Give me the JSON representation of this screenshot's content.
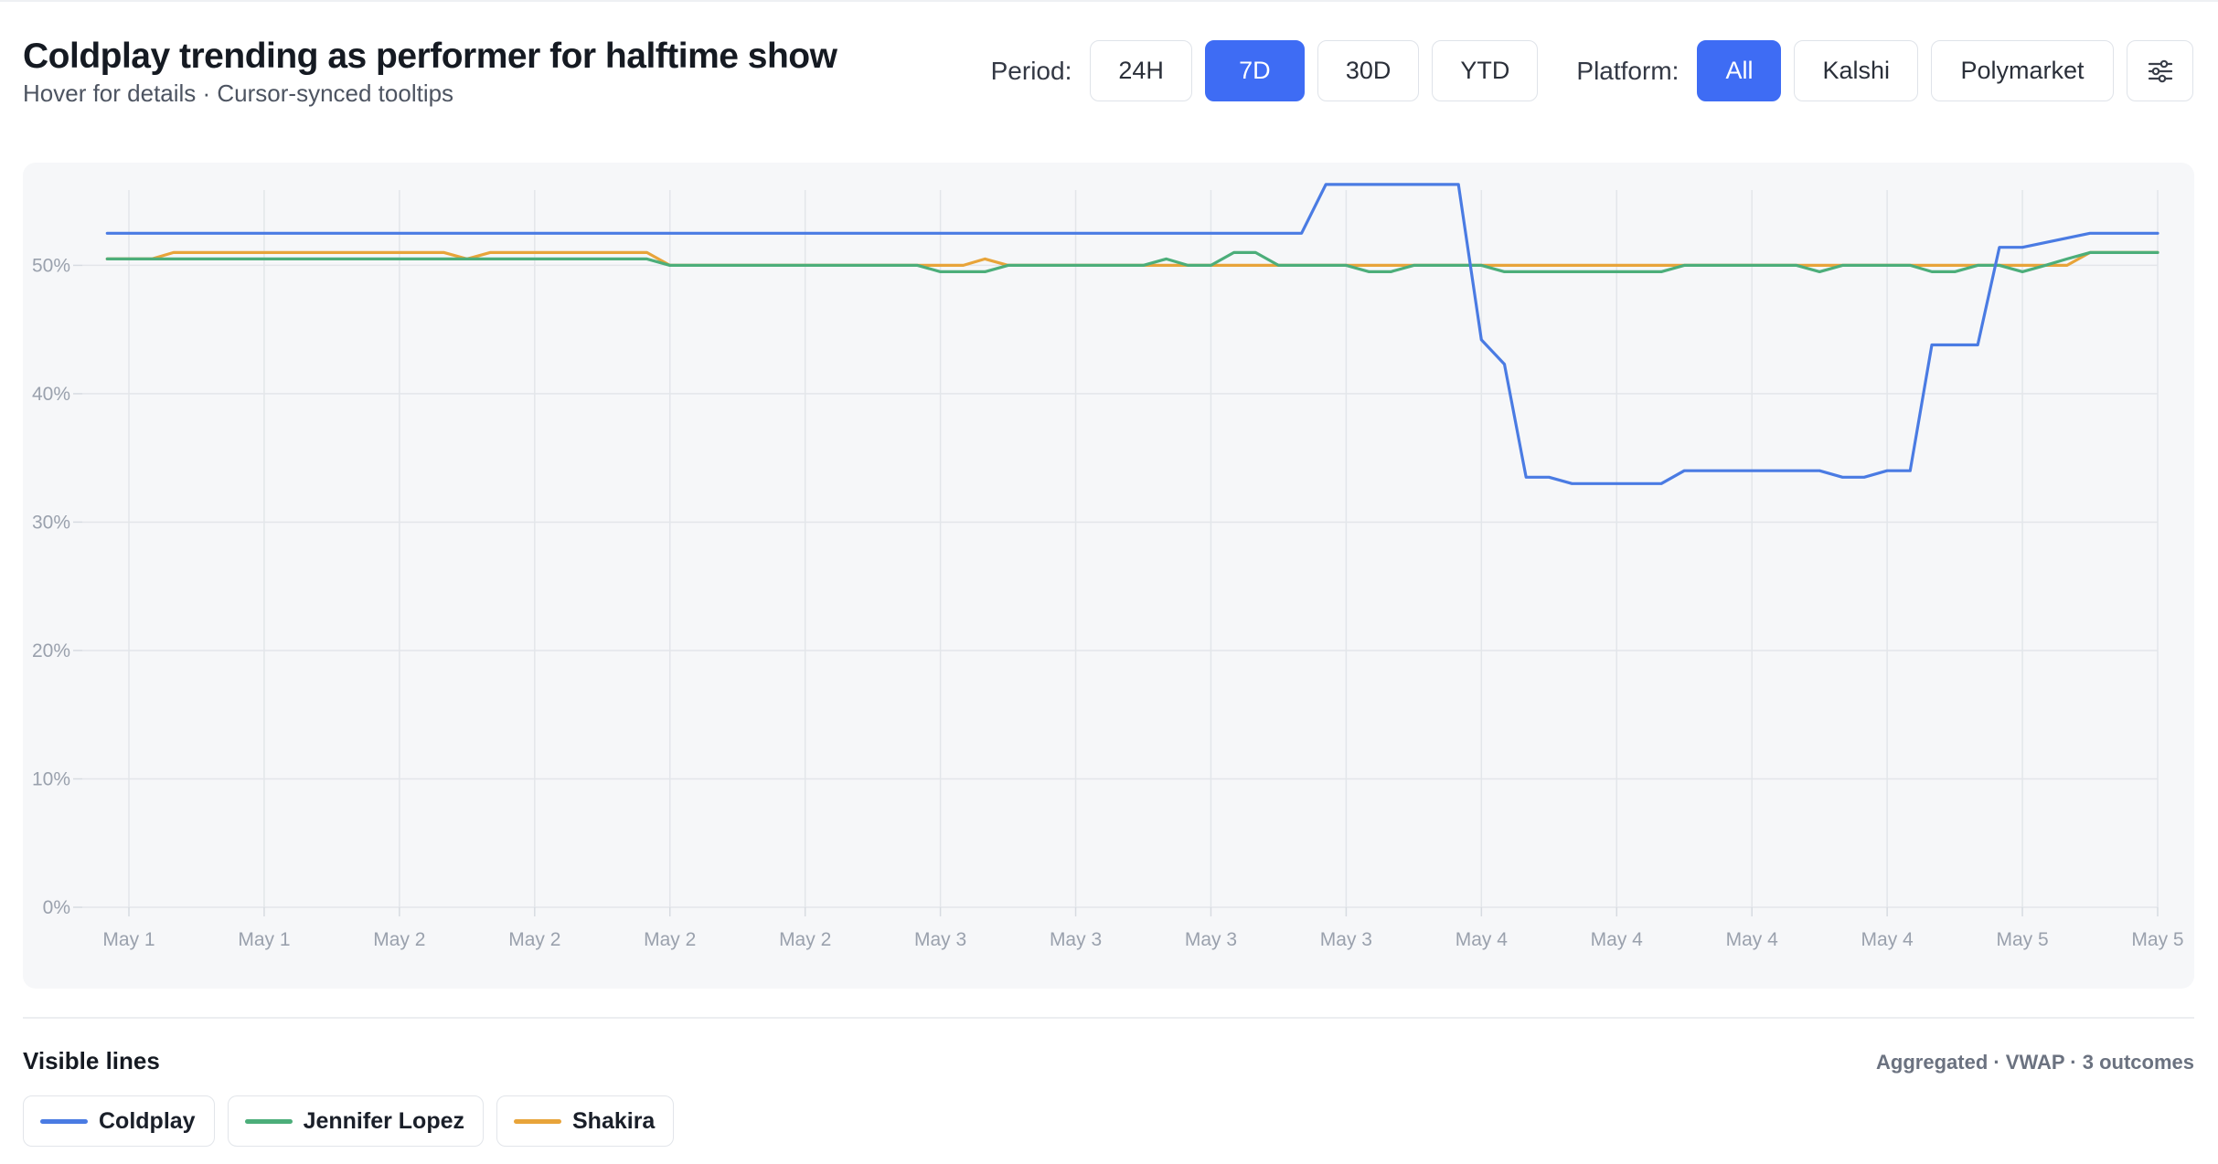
{
  "header": {
    "title": "Coldplay trending as performer for halftime show",
    "subtitle": "Hover for details · Cursor-synced tooltips"
  },
  "controls": {
    "period_label": "Period:",
    "periods": [
      "24H",
      "7D",
      "30D",
      "YTD"
    ],
    "active_period": "7D",
    "platform_label": "Platform:",
    "platforms": [
      "All",
      "Kalshi",
      "Polymarket"
    ],
    "active_platform": "All",
    "settings_icon": "sliders-icon"
  },
  "colors": {
    "accent": "#3e6cf4",
    "coldplay": "#4a7be3",
    "jennifer_lopez": "#4cae7a",
    "shakira": "#e8a43a"
  },
  "chart_data": {
    "type": "line",
    "title": "Coldplay trending as performer for halftime show",
    "xlabel": "",
    "ylabel": "",
    "x_tick_labels": [
      "May 1",
      "May 1",
      "May 2",
      "May 2",
      "May 2",
      "May 2",
      "May 3",
      "May 3",
      "May 3",
      "May 3",
      "May 4",
      "May 4",
      "May 4",
      "May 4",
      "May 5",
      "May 5"
    ],
    "y_ticks": [
      0,
      10,
      20,
      30,
      40,
      50
    ],
    "y_tick_labels": [
      "0%",
      "10%",
      "20%",
      "30%",
      "40%",
      "50%"
    ],
    "ylim": [
      0,
      58
    ],
    "x_range": [
      -0.16,
      15
    ],
    "grid": true,
    "series": [
      {
        "name": "Coldplay",
        "color": "#4a7be3",
        "x": [
          -0.16,
          8.67,
          8.85,
          9.83,
          10.0,
          10.17,
          10.33,
          10.5,
          10.67,
          11.33,
          11.5,
          12.5,
          12.67,
          12.83,
          13.0,
          13.17,
          13.33,
          13.67,
          13.83,
          14.0,
          14.5,
          15.0
        ],
        "values": [
          52.5,
          52.5,
          56.3,
          56.3,
          44.2,
          42.3,
          33.5,
          33.5,
          33.0,
          33.0,
          34.0,
          34.0,
          33.5,
          33.5,
          34.0,
          34.0,
          43.8,
          43.8,
          51.4,
          51.4,
          52.5,
          52.5
        ]
      },
      {
        "name": "Jennifer Lopez",
        "color": "#4cae7a",
        "x": [
          -0.16,
          0.17,
          0.33,
          1.83,
          2.0,
          3.83,
          4.0,
          5.83,
          6.0,
          6.33,
          6.5,
          7.5,
          7.67,
          7.83,
          8.0,
          8.17,
          8.33,
          8.5,
          9.0,
          9.17,
          9.33,
          9.5,
          10.0,
          10.17,
          11.33,
          11.5,
          12.33,
          12.5,
          12.67,
          13.17,
          13.33,
          13.5,
          13.67,
          13.83,
          14.0,
          14.17,
          14.33,
          14.5,
          15.0
        ],
        "values": [
          50.5,
          50.5,
          50.5,
          50.5,
          50.5,
          50.5,
          50.0,
          50.0,
          49.5,
          49.5,
          50.0,
          50.0,
          50.5,
          50.0,
          50.0,
          51.0,
          51.0,
          50.0,
          50.0,
          49.5,
          49.5,
          50.0,
          50.0,
          49.5,
          49.5,
          50.0,
          50.0,
          49.5,
          50.0,
          50.0,
          49.5,
          49.5,
          50.0,
          50.0,
          49.5,
          50.0,
          50.5,
          51.0,
          51.0
        ]
      },
      {
        "name": "Shakira",
        "color": "#e8a43a",
        "x": [
          -0.16,
          0.17,
          0.33,
          1.83,
          2.33,
          2.5,
          2.67,
          3.83,
          4.0,
          6.17,
          6.33,
          6.5,
          14.17,
          14.33,
          14.5,
          15.0
        ],
        "values": [
          50.5,
          50.5,
          51.0,
          51.0,
          51.0,
          50.5,
          51.0,
          51.0,
          50.0,
          50.0,
          50.5,
          50.0,
          50.0,
          50.0,
          51.0,
          51.0
        ]
      }
    ]
  },
  "footer": {
    "visible_lines_title": "Visible lines",
    "meta": "Aggregated · VWAP · 3 outcomes",
    "legend": [
      "Coldplay",
      "Jennifer Lopez",
      "Shakira"
    ]
  }
}
